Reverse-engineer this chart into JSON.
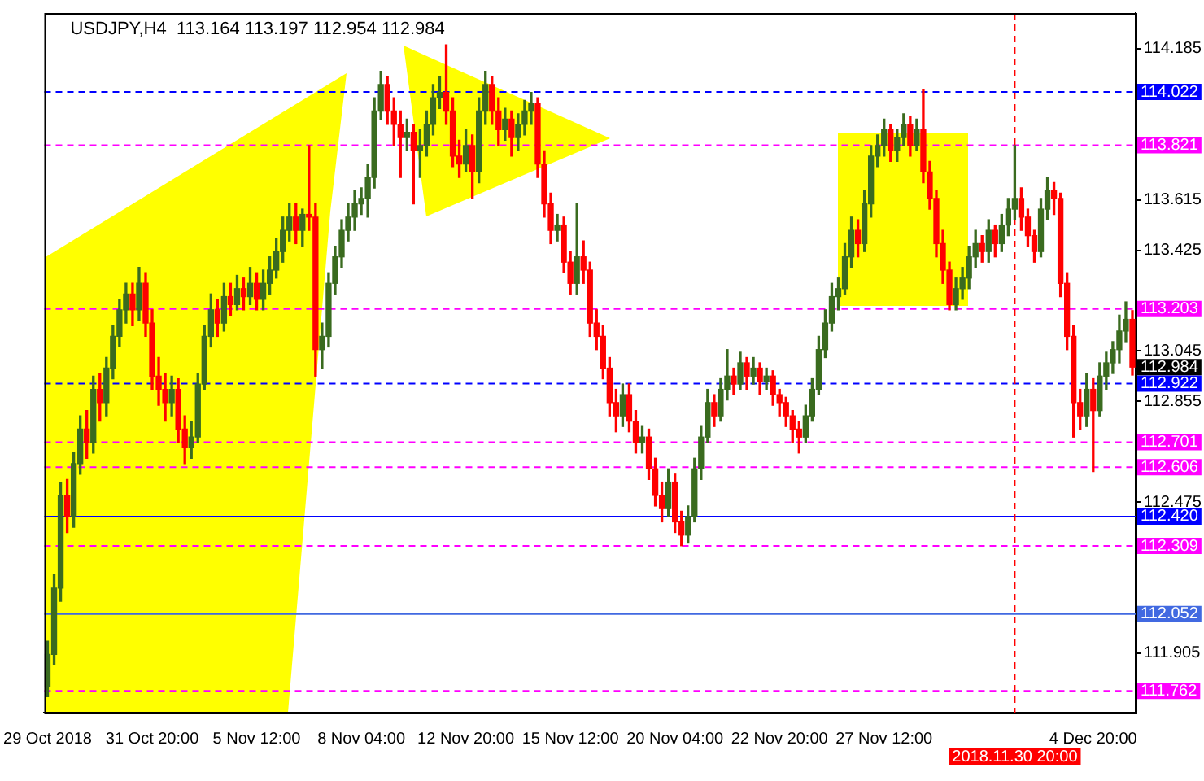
{
  "chart_data": {
    "type": "candlestick",
    "title": "USDJPY,H4  113.164 113.197 112.954 112.984",
    "categories": [
      "29 Oct 2018",
      null,
      null,
      null,
      null,
      null,
      null,
      null,
      null,
      null,
      null,
      null,
      null,
      null,
      null,
      null,
      "31 Oct 20:00",
      null,
      null,
      null,
      null,
      null,
      null,
      null,
      null,
      null,
      null,
      null,
      null,
      null,
      null,
      null,
      "5 Nov 12:00",
      null,
      null,
      null,
      null,
      null,
      null,
      null,
      null,
      null,
      null,
      null,
      null,
      null,
      null,
      null,
      "8 Nov 04:00",
      null,
      null,
      null,
      null,
      null,
      null,
      null,
      null,
      null,
      null,
      null,
      null,
      null,
      null,
      null,
      "12 Nov 20:00",
      null,
      null,
      null,
      null,
      null,
      null,
      null,
      null,
      null,
      null,
      null,
      null,
      null,
      null,
      null,
      "15 Nov 12:00",
      null,
      null,
      null,
      null,
      null,
      null,
      null,
      null,
      null,
      null,
      null,
      null,
      null,
      null,
      null,
      "20 Nov 04:00",
      null,
      null,
      null,
      null,
      null,
      null,
      null,
      null,
      null,
      null,
      null,
      null,
      null,
      null,
      null,
      "22 Nov 20:00",
      null,
      null,
      null,
      null,
      null,
      null,
      null,
      null,
      null,
      null,
      null,
      null,
      null,
      null,
      null,
      "27 Nov 12:00",
      null,
      null,
      null,
      null,
      null,
      null,
      null,
      null,
      null,
      null,
      null,
      null,
      null,
      null,
      null,
      null,
      null,
      null,
      null,
      "2018.11.30 20:00",
      null,
      null,
      null,
      null,
      null,
      null,
      null,
      null,
      null,
      null,
      null,
      "4 Dec 20:00",
      null,
      null,
      null,
      null,
      null,
      null
    ],
    "ohlc": [
      [
        111.78,
        111.95,
        111.74,
        111.9
      ],
      [
        111.9,
        112.2,
        111.86,
        112.15
      ],
      [
        112.15,
        112.55,
        112.1,
        112.5
      ],
      [
        112.5,
        112.56,
        112.36,
        112.42
      ],
      [
        112.42,
        112.66,
        112.38,
        112.62
      ],
      [
        112.62,
        112.8,
        112.58,
        112.75
      ],
      [
        112.75,
        112.82,
        112.64,
        112.7
      ],
      [
        112.7,
        112.95,
        112.66,
        112.9
      ],
      [
        112.9,
        112.96,
        112.78,
        112.85
      ],
      [
        112.85,
        113.02,
        112.8,
        112.98
      ],
      [
        112.98,
        113.14,
        112.94,
        113.1
      ],
      [
        113.1,
        113.24,
        113.06,
        113.2
      ],
      [
        113.2,
        113.3,
        113.15,
        113.26
      ],
      [
        113.26,
        113.3,
        113.14,
        113.2
      ],
      [
        113.2,
        113.36,
        113.16,
        113.3
      ],
      [
        113.3,
        113.34,
        113.1,
        113.15
      ],
      [
        113.15,
        113.2,
        112.9,
        112.95
      ],
      [
        112.95,
        113.02,
        112.84,
        112.9
      ],
      [
        112.9,
        112.96,
        112.78,
        112.85
      ],
      [
        112.85,
        112.95,
        112.8,
        112.9
      ],
      [
        112.9,
        112.94,
        112.7,
        112.75
      ],
      [
        112.75,
        112.8,
        112.62,
        112.68
      ],
      [
        112.68,
        112.78,
        112.64,
        112.72
      ],
      [
        112.72,
        112.96,
        112.7,
        112.92
      ],
      [
        112.92,
        113.14,
        112.9,
        113.1
      ],
      [
        113.1,
        113.26,
        113.06,
        113.2
      ],
      [
        113.2,
        113.24,
        113.1,
        113.15
      ],
      [
        113.15,
        113.3,
        113.12,
        113.25
      ],
      [
        113.25,
        113.3,
        113.18,
        113.22
      ],
      [
        113.22,
        113.33,
        113.2,
        113.28
      ],
      [
        113.28,
        113.32,
        113.2,
        113.25
      ],
      [
        113.25,
        113.36,
        113.22,
        113.3
      ],
      [
        113.3,
        113.34,
        113.2,
        113.24
      ],
      [
        113.24,
        113.35,
        113.2,
        113.3
      ],
      [
        113.3,
        113.4,
        113.26,
        113.35
      ],
      [
        113.35,
        113.47,
        113.32,
        113.42
      ],
      [
        113.42,
        113.55,
        113.38,
        113.5
      ],
      [
        113.5,
        113.6,
        113.46,
        113.55
      ],
      [
        113.55,
        113.6,
        113.45,
        113.5
      ],
      [
        113.5,
        113.58,
        113.44,
        113.56
      ],
      [
        113.56,
        113.82,
        113.5,
        113.55
      ],
      [
        113.55,
        113.6,
        112.95,
        113.05
      ],
      [
        113.05,
        113.15,
        112.98,
        113.1
      ],
      [
        113.1,
        113.34,
        113.06,
        113.3
      ],
      [
        113.3,
        113.44,
        113.26,
        113.4
      ],
      [
        113.4,
        113.54,
        113.36,
        113.5
      ],
      [
        113.5,
        113.6,
        113.46,
        113.55
      ],
      [
        113.55,
        113.65,
        113.5,
        113.6
      ],
      [
        113.6,
        113.66,
        113.56,
        113.62
      ],
      [
        113.62,
        113.75,
        113.55,
        113.7
      ],
      [
        113.7,
        114.0,
        113.66,
        113.95
      ],
      [
        113.95,
        114.1,
        113.92,
        114.05
      ],
      [
        114.05,
        114.08,
        113.9,
        113.95
      ],
      [
        113.95,
        114.0,
        113.82,
        113.9
      ],
      [
        113.9,
        113.95,
        113.7,
        113.85
      ],
      [
        113.85,
        113.92,
        113.8,
        113.87
      ],
      [
        113.87,
        113.9,
        113.6,
        113.8
      ],
      [
        113.8,
        113.88,
        113.7,
        113.82
      ],
      [
        113.82,
        113.95,
        113.78,
        113.9
      ],
      [
        113.9,
        114.05,
        113.86,
        114.0
      ],
      [
        114.0,
        114.08,
        113.96,
        114.02
      ],
      [
        114.02,
        114.2,
        113.9,
        113.95
      ],
      [
        113.95,
        114.0,
        113.74,
        113.78
      ],
      [
        113.78,
        113.84,
        113.7,
        113.75
      ],
      [
        113.75,
        113.88,
        113.72,
        113.82
      ],
      [
        113.82,
        113.86,
        113.62,
        113.72
      ],
      [
        113.72,
        114.0,
        113.68,
        113.95
      ],
      [
        113.95,
        114.1,
        113.9,
        114.05
      ],
      [
        114.05,
        114.08,
        113.9,
        113.95
      ],
      [
        113.95,
        114.0,
        113.82,
        113.88
      ],
      [
        113.88,
        113.96,
        113.84,
        113.92
      ],
      [
        113.92,
        113.95,
        113.78,
        113.85
      ],
      [
        113.85,
        113.94,
        113.8,
        113.9
      ],
      [
        113.9,
        113.99,
        113.86,
        113.95
      ],
      [
        113.95,
        114.02,
        113.9,
        113.98
      ],
      [
        113.98,
        114.0,
        113.7,
        113.75
      ],
      [
        113.75,
        113.8,
        113.55,
        113.6
      ],
      [
        113.6,
        113.64,
        113.45,
        113.5
      ],
      [
        113.5,
        113.56,
        113.46,
        113.52
      ],
      [
        113.52,
        113.55,
        113.34,
        113.38
      ],
      [
        113.38,
        113.42,
        113.26,
        113.3
      ],
      [
        113.3,
        113.6,
        113.26,
        113.4
      ],
      [
        113.4,
        113.46,
        113.3,
        113.35
      ],
      [
        113.35,
        113.38,
        113.1,
        113.15
      ],
      [
        113.15,
        113.2,
        113.05,
        113.1
      ],
      [
        113.1,
        113.14,
        112.94,
        112.98
      ],
      [
        112.98,
        113.02,
        112.8,
        112.85
      ],
      [
        112.85,
        112.9,
        112.74,
        112.8
      ],
      [
        112.8,
        112.92,
        112.76,
        112.88
      ],
      [
        112.88,
        112.92,
        112.74,
        112.78
      ],
      [
        112.78,
        112.82,
        112.66,
        112.7
      ],
      [
        112.7,
        112.76,
        112.66,
        112.72
      ],
      [
        112.72,
        112.75,
        112.56,
        112.6
      ],
      [
        112.6,
        112.64,
        112.46,
        112.5
      ],
      [
        112.5,
        112.55,
        112.4,
        112.45
      ],
      [
        112.45,
        112.6,
        112.42,
        112.55
      ],
      [
        112.55,
        112.58,
        112.36,
        112.4
      ],
      [
        112.4,
        112.44,
        112.31,
        112.35
      ],
      [
        112.35,
        112.46,
        112.32,
        112.42
      ],
      [
        112.42,
        112.64,
        112.4,
        112.6
      ],
      [
        112.6,
        112.76,
        112.56,
        112.72
      ],
      [
        112.72,
        112.9,
        112.7,
        112.85
      ],
      [
        112.85,
        112.88,
        112.76,
        112.8
      ],
      [
        112.8,
        112.94,
        112.78,
        112.9
      ],
      [
        112.9,
        113.05,
        112.86,
        112.95
      ],
      [
        112.95,
        112.98,
        112.88,
        112.92
      ],
      [
        112.92,
        113.04,
        112.9,
        113.0
      ],
      [
        113.0,
        113.02,
        112.9,
        112.95
      ],
      [
        112.95,
        113.02,
        112.92,
        112.98
      ],
      [
        112.98,
        113.0,
        112.88,
        112.93
      ],
      [
        112.93,
        112.98,
        112.9,
        112.95
      ],
      [
        112.95,
        112.97,
        112.84,
        112.88
      ],
      [
        112.88,
        112.9,
        112.8,
        112.85
      ],
      [
        112.85,
        112.87,
        112.76,
        112.8
      ],
      [
        112.8,
        112.82,
        112.7,
        112.75
      ],
      [
        112.75,
        112.78,
        112.66,
        112.72
      ],
      [
        112.72,
        112.84,
        112.7,
        112.8
      ],
      [
        112.8,
        112.94,
        112.78,
        112.9
      ],
      [
        112.9,
        113.1,
        112.88,
        113.05
      ],
      [
        113.05,
        113.2,
        113.02,
        113.15
      ],
      [
        113.15,
        113.3,
        113.12,
        113.25
      ],
      [
        113.25,
        113.32,
        113.2,
        113.28
      ],
      [
        113.28,
        113.45,
        113.26,
        113.4
      ],
      [
        113.4,
        113.55,
        113.36,
        113.5
      ],
      [
        113.5,
        113.54,
        113.4,
        113.45
      ],
      [
        113.45,
        113.65,
        113.42,
        113.6
      ],
      [
        113.6,
        113.82,
        113.55,
        113.78
      ],
      [
        113.78,
        113.86,
        113.74,
        113.82
      ],
      [
        113.82,
        113.92,
        113.78,
        113.88
      ],
      [
        113.88,
        113.9,
        113.76,
        113.8
      ],
      [
        113.8,
        113.88,
        113.76,
        113.85
      ],
      [
        113.85,
        113.94,
        113.82,
        113.9
      ],
      [
        113.9,
        113.93,
        113.78,
        113.82
      ],
      [
        113.82,
        113.92,
        113.8,
        113.88
      ],
      [
        113.88,
        114.03,
        113.68,
        113.72
      ],
      [
        113.72,
        113.76,
        113.58,
        113.62
      ],
      [
        113.62,
        113.65,
        113.4,
        113.45
      ],
      [
        113.45,
        113.5,
        113.3,
        113.35
      ],
      [
        113.35,
        113.38,
        113.2,
        113.22
      ],
      [
        113.22,
        113.32,
        113.2,
        113.28
      ],
      [
        113.28,
        113.36,
        113.24,
        113.32
      ],
      [
        113.32,
        113.44,
        113.28,
        113.4
      ],
      [
        113.4,
        113.5,
        113.36,
        113.45
      ],
      [
        113.45,
        113.48,
        113.38,
        113.42
      ],
      [
        113.42,
        113.54,
        113.38,
        113.5
      ],
      [
        113.5,
        113.52,
        113.4,
        113.45
      ],
      [
        113.45,
        113.56,
        113.42,
        113.52
      ],
      [
        113.52,
        113.62,
        113.48,
        113.58
      ],
      [
        113.58,
        113.82,
        113.54,
        113.62
      ],
      [
        113.62,
        113.66,
        113.5,
        113.55
      ],
      [
        113.55,
        113.58,
        113.44,
        113.48
      ],
      [
        113.48,
        113.5,
        113.38,
        113.42
      ],
      [
        113.42,
        113.62,
        113.4,
        113.58
      ],
      [
        113.58,
        113.7,
        113.54,
        113.65
      ],
      [
        113.65,
        113.68,
        113.56,
        113.62
      ],
      [
        113.62,
        113.64,
        113.25,
        113.3
      ],
      [
        113.3,
        113.34,
        113.05,
        113.1
      ],
      [
        113.1,
        113.14,
        112.72,
        112.85
      ],
      [
        112.85,
        112.9,
        112.75,
        112.8
      ],
      [
        112.8,
        112.96,
        112.76,
        112.9
      ],
      [
        112.9,
        112.94,
        112.59,
        112.82
      ],
      [
        112.82,
        113.0,
        112.8,
        112.95
      ],
      [
        112.95,
        113.04,
        112.9,
        113.0
      ],
      [
        113.0,
        113.08,
        112.96,
        113.05
      ],
      [
        113.05,
        113.18,
        113.0,
        113.12
      ],
      [
        113.12,
        113.23,
        113.08,
        113.164
      ],
      [
        113.164,
        113.197,
        112.954,
        112.984
      ]
    ],
    "colors": [
      "#3a6b1f",
      "#3a6b1f",
      "#3a6b1f",
      "#ff0000",
      "#3a6b1f",
      "#3a6b1f",
      "#ff0000",
      "#3a6b1f",
      "#ff0000",
      "#3a6b1f",
      "#3a6b1f",
      "#3a6b1f",
      "#3a6b1f",
      "#ff0000",
      "#3a6b1f",
      "#ff0000",
      "#ff0000",
      "#ff0000",
      "#ff0000",
      "#3a6b1f",
      "#ff0000",
      "#ff0000",
      "#3a6b1f",
      "#3a6b1f",
      "#3a6b1f",
      "#3a6b1f",
      "#ff0000",
      "#3a6b1f",
      "#ff0000",
      "#3a6b1f",
      "#ff0000",
      "#3a6b1f",
      "#ff0000",
      "#3a6b1f",
      "#3a6b1f",
      "#3a6b1f",
      "#3a6b1f",
      "#3a6b1f",
      "#ff0000",
      "#3a6b1f",
      "#ff0000",
      "#ff0000",
      "#3a6b1f",
      "#3a6b1f",
      "#3a6b1f",
      "#3a6b1f",
      "#3a6b1f",
      "#3a6b1f",
      "#3a6b1f",
      "#3a6b1f",
      "#3a6b1f",
      "#3a6b1f",
      "#ff0000",
      "#ff0000",
      "#ff0000",
      "#3a6b1f",
      "#ff0000",
      "#3a6b1f",
      "#3a6b1f",
      "#3a6b1f",
      "#3a6b1f",
      "#ff0000",
      "#ff0000",
      "#ff0000",
      "#3a6b1f",
      "#ff0000",
      "#3a6b1f",
      "#3a6b1f",
      "#ff0000",
      "#ff0000",
      "#3a6b1f",
      "#ff0000",
      "#3a6b1f",
      "#3a6b1f",
      "#3a6b1f",
      "#ff0000",
      "#ff0000",
      "#ff0000",
      "#3a6b1f",
      "#ff0000",
      "#ff0000",
      "#3a6b1f",
      "#ff0000",
      "#ff0000",
      "#ff0000",
      "#ff0000",
      "#ff0000",
      "#ff0000",
      "#3a6b1f",
      "#ff0000",
      "#ff0000",
      "#3a6b1f",
      "#ff0000",
      "#ff0000",
      "#ff0000",
      "#3a6b1f",
      "#ff0000",
      "#ff0000",
      "#3a6b1f",
      "#3a6b1f",
      "#3a6b1f",
      "#3a6b1f",
      "#ff0000",
      "#3a6b1f",
      "#3a6b1f",
      "#ff0000",
      "#3a6b1f",
      "#ff0000",
      "#3a6b1f",
      "#ff0000",
      "#3a6b1f",
      "#ff0000",
      "#ff0000",
      "#ff0000",
      "#ff0000",
      "#ff0000",
      "#3a6b1f",
      "#3a6b1f",
      "#3a6b1f",
      "#3a6b1f",
      "#3a6b1f",
      "#3a6b1f",
      "#3a6b1f",
      "#3a6b1f",
      "#ff0000",
      "#3a6b1f",
      "#3a6b1f",
      "#3a6b1f",
      "#3a6b1f",
      "#ff0000",
      "#3a6b1f",
      "#3a6b1f",
      "#ff0000",
      "#3a6b1f",
      "#ff0000",
      "#ff0000",
      "#ff0000",
      "#ff0000",
      "#ff0000",
      "#3a6b1f",
      "#3a6b1f",
      "#3a6b1f",
      "#3a6b1f",
      "#ff0000",
      "#3a6b1f",
      "#ff0000",
      "#3a6b1f",
      "#3a6b1f",
      "#3a6b1f",
      "#ff0000",
      "#ff0000",
      "#ff0000",
      "#3a6b1f",
      "#3a6b1f",
      "#ff0000",
      "#ff0000",
      "#ff0000",
      "#ff0000",
      "#ff0000",
      "#3a6b1f",
      "#ff0000",
      "#3a6b1f",
      "#3a6b1f",
      "#3a6b1f",
      "#3a6b1f",
      "#3a6b1f",
      "#ff0000"
    ],
    "ylim": [
      111.68,
      114.32
    ],
    "yticks": [
      114.185,
      113.615,
      113.425,
      113.045,
      112.855,
      112.475,
      111.905
    ],
    "ref_lines": [
      {
        "axis": "y",
        "value": 114.022,
        "label": "114.022",
        "color": "#0000ff",
        "line_style": "dashed"
      },
      {
        "axis": "y",
        "value": 113.821,
        "label": "113.821",
        "color": "#ff00ff",
        "line_style": "dashed"
      },
      {
        "axis": "y",
        "value": 113.203,
        "label": "113.203",
        "color": "#ff00ff",
        "line_style": "dashed"
      },
      {
        "axis": "y",
        "value": 112.922,
        "label": "112.922",
        "color": "#0000ff",
        "line_style": "dashed"
      },
      {
        "axis": "y",
        "value": 112.701,
        "label": "112.701",
        "color": "#ff00ff",
        "line_style": "dashed"
      },
      {
        "axis": "y",
        "value": 112.606,
        "label": "112.606",
        "color": "#ff00ff",
        "line_style": "dashed"
      },
      {
        "axis": "y",
        "value": 112.42,
        "label": "112.420",
        "color": "#0000ff",
        "line_style": "solid"
      },
      {
        "axis": "y",
        "value": 112.309,
        "label": "112.309",
        "color": "#ff00ff",
        "line_style": "dashed"
      },
      {
        "axis": "y",
        "value": 112.052,
        "label": "112.052",
        "color": "#4169e1",
        "line_style": "solid"
      },
      {
        "axis": "y",
        "value": 111.762,
        "label": "111.762",
        "color": "#ff00ff",
        "line_style": "dashed"
      },
      {
        "axis": "x",
        "value": "2018.11.30 20:00",
        "color": "#ff0000",
        "line_style": "dashed"
      }
    ],
    "annotations": [
      "112.984"
    ],
    "grid": false,
    "legend": false
  }
}
